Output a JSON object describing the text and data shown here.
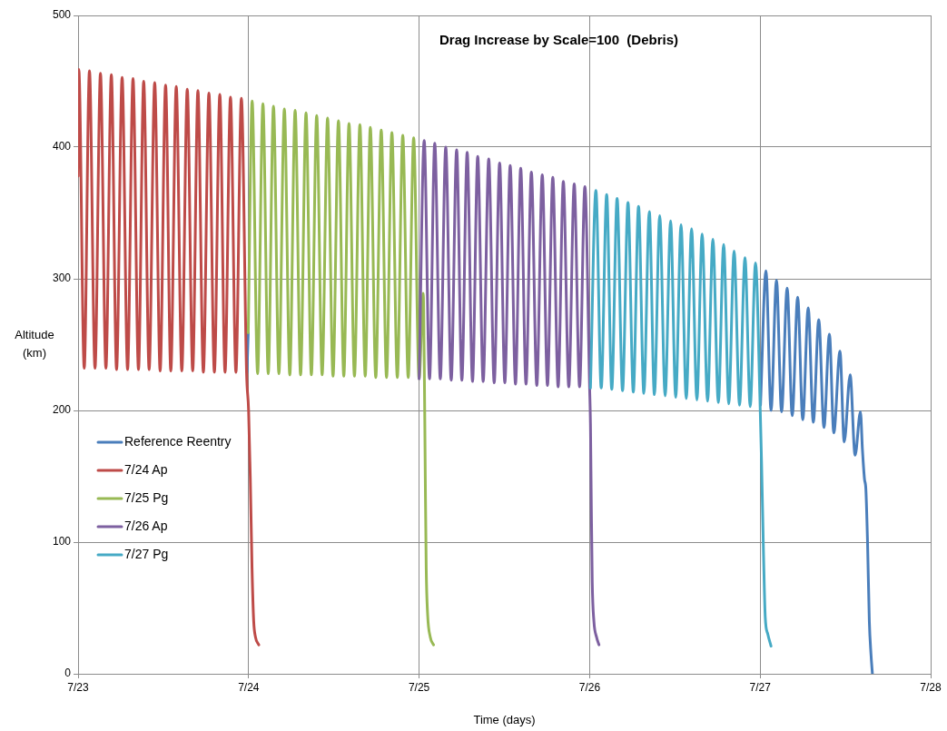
{
  "chart_data": {
    "type": "line",
    "title": "Drag Increase by Scale=100  (Debris)",
    "xlabel": "Time (days)",
    "ylabel": "Altitude (km)",
    "xlim": [
      "--07-23",
      "--07-28"
    ],
    "xticks": [
      {
        "value": "--07-23",
        "label": "7/23"
      },
      {
        "value": "--07-24",
        "label": "7/24"
      },
      {
        "value": "--07-25",
        "label": "7/25"
      },
      {
        "value": "--07-26",
        "label": "7/26"
      },
      {
        "value": "--07-27",
        "label": "7/27"
      },
      {
        "value": "--07-28",
        "label": "7/28"
      }
    ],
    "ylim": [
      0,
      500
    ],
    "yticks": [
      0,
      100,
      200,
      300,
      400,
      500
    ],
    "grid": true,
    "legend": "left",
    "marker": "none",
    "line_style": "solid",
    "series": [
      {
        "name": "Reference Reentry",
        "color": "#4a7ebb",
        "x": [
          "--07-23T23:46",
          "--07-23T23:57",
          "--07-25T12:00",
          "--07-27T00:03",
          "--07-27T00:49",
          "--07-27T01:32",
          "--07-27T02:18",
          "--07-27T03:01",
          "--07-27T03:48",
          "--07-27T04:31",
          "--07-27T05:17",
          "--07-27T06:00",
          "--07-27T06:46",
          "--07-27T07:29",
          "--07-27T08:15",
          "--07-27T08:59",
          "--07-27T09:45",
          "--07-27T10:22",
          "--07-27T11:14",
          "--07-27T11:50",
          "--07-27T12:40",
          "--07-27T13:22",
          "--07-27T14:07",
          "--07-27T14:24",
          "--07-27T14:41",
          "--07-27T14:53",
          "--07-27T15:07",
          "--07-27T15:22",
          "--07-27T15:36",
          "--07-27T15:48"
        ],
        "values": [
          229,
          259,
          null,
          204,
          306,
          200,
          299,
          199,
          293,
          196,
          286,
          193,
          278,
          191,
          269,
          187,
          258,
          183,
          245,
          176,
          227,
          166,
          199,
          170,
          148,
          140,
          100,
          40,
          15,
          0
        ]
      },
      {
        "name": "7/24 Ap",
        "color": "#be4b48",
        "x": [
          "--07-23T00:00",
          "--07-23T00:06",
          "--07-23T00:52",
          "--07-23T01:36",
          "--07-23T02:23",
          "--07-23T03:09",
          "--07-23T03:55",
          "--07-23T04:41",
          "--07-23T05:25",
          "--07-23T06:12",
          "--07-23T06:58",
          "--07-23T07:44",
          "--07-23T08:30",
          "--07-23T09:14",
          "--07-23T10:00",
          "--07-23T10:47",
          "--07-23T11:33",
          "--07-23T12:19",
          "--07-23T13:03",
          "--07-23T13:49",
          "--07-23T14:36",
          "--07-23T15:22",
          "--07-23T16:08",
          "--07-23T16:52",
          "--07-23T17:38",
          "--07-23T18:25",
          "--07-23T19:11",
          "--07-23T19:57",
          "--07-23T20:41",
          "--07-23T21:27",
          "--07-23T22:13",
          "--07-23T22:59",
          "--07-23T23:43",
          "--07-24T00:00",
          "--07-24T00:14",
          "--07-24T00:29",
          "--07-24T00:43",
          "--07-24T00:58",
          "--07-24T01:26"
        ],
        "values": [
          378,
          459,
          232,
          458,
          232,
          456,
          232,
          455,
          231,
          453,
          231,
          452,
          231,
          450,
          231,
          449,
          230,
          447,
          230,
          446,
          230,
          444,
          230,
          443,
          229,
          441,
          229,
          440,
          229,
          438,
          229,
          437,
          228,
          200,
          150,
          80,
          40,
          28,
          22
        ]
      },
      {
        "name": "7/25 Pg",
        "color": "#98b954",
        "x": [
          "--07-23T23:57",
          "--07-24T00:30",
          "--07-24T01:16",
          "--07-24T02:01",
          "--07-24T02:46",
          "--07-24T03:30",
          "--07-24T04:16",
          "--07-24T05:02",
          "--07-24T05:48",
          "--07-24T06:33",
          "--07-24T07:19",
          "--07-24T08:05",
          "--07-24T08:50",
          "--07-24T09:35",
          "--07-24T10:21",
          "--07-24T11:07",
          "--07-24T11:53",
          "--07-24T12:39",
          "--07-24T13:24",
          "--07-24T14:08",
          "--07-24T14:54",
          "--07-24T15:40",
          "--07-24T16:25",
          "--07-24T17:08",
          "--07-24T17:54",
          "--07-24T18:40",
          "--07-24T19:25",
          "--07-24T20:10",
          "--07-24T20:56",
          "--07-24T21:42",
          "--07-24T22:28",
          "--07-24T23:14",
          "--07-25T00:00",
          "--07-25T00:35",
          "--07-25T00:43",
          "--07-25T00:52",
          "--07-25T01:00",
          "--07-25T01:12",
          "--07-25T01:34",
          "--07-25T02:02"
        ],
        "values": [
          259,
          435,
          228,
          433,
          228,
          431,
          228,
          429,
          227,
          428,
          227,
          426,
          227,
          424,
          227,
          422,
          226,
          420,
          226,
          418,
          226,
          417,
          226,
          415,
          225,
          413,
          225,
          411,
          225,
          409,
          225,
          407,
          224,
          289,
          240,
          150,
          80,
          45,
          28,
          22
        ]
      },
      {
        "name": "7/26 Ap",
        "color": "#7d60a0",
        "x": [
          "--07-25T00:00",
          "--07-25T00:43",
          "--07-25T01:28",
          "--07-25T02:12",
          "--07-25T02:59",
          "--07-25T03:45",
          "--07-25T04:31",
          "--07-25T05:17",
          "--07-25T06:01",
          "--07-25T06:46",
          "--07-25T07:31",
          "--07-25T08:15",
          "--07-25T09:01",
          "--07-25T09:48",
          "--07-25T10:34",
          "--07-25T11:20",
          "--07-25T12:04",
          "--07-25T12:49",
          "--07-25T13:34",
          "--07-25T14:18",
          "--07-25T15:03",
          "--07-25T15:48",
          "--07-25T16:34",
          "--07-25T17:20",
          "--07-25T18:04",
          "--07-25T18:49",
          "--07-25T19:34",
          "--07-25T20:18",
          "--07-25T21:04",
          "--07-25T21:50",
          "--07-25T22:35",
          "--07-25T23:20",
          "--07-26T00:00",
          "--07-26T00:07",
          "--07-26T00:14",
          "--07-26T00:22",
          "--07-26T00:36",
          "--07-26T00:58",
          "--07-26T01:19"
        ],
        "values": [
          224,
          405,
          224,
          403,
          224,
          400,
          223,
          398,
          223,
          396,
          222,
          393,
          222,
          391,
          221,
          388,
          221,
          386,
          220,
          384,
          220,
          381,
          219,
          379,
          219,
          377,
          218,
          374,
          218,
          372,
          218,
          370,
          217,
          190,
          130,
          70,
          40,
          28,
          22
        ]
      },
      {
        "name": "7/27 Pg",
        "color": "#46aac5",
        "x": [
          "--07-26T00:07",
          "--07-26T00:53",
          "--07-26T01:38",
          "--07-26T02:24",
          "--07-26T03:07",
          "--07-26T03:52",
          "--07-26T04:38",
          "--07-26T05:24",
          "--07-26T06:09",
          "--07-26T06:53",
          "--07-26T07:38",
          "--07-26T08:24",
          "--07-26T09:07",
          "--07-26T09:52",
          "--07-26T10:38",
          "--07-26T11:24",
          "--07-26T12:07",
          "--07-26T12:52",
          "--07-26T13:36",
          "--07-26T14:21",
          "--07-26T15:06",
          "--07-26T15:50",
          "--07-26T16:36",
          "--07-26T17:21",
          "--07-26T18:07",
          "--07-26T18:52",
          "--07-26T19:35",
          "--07-26T20:20",
          "--07-26T21:06",
          "--07-26T21:52",
          "--07-26T22:36",
          "--07-26T23:21",
          "--07-27T00:00",
          "--07-27T00:12",
          "--07-27T00:29",
          "--07-27T00:43",
          "--07-27T01:05",
          "--07-27T01:32"
        ],
        "values": [
          217,
          367,
          217,
          364,
          216,
          361,
          215,
          358,
          214,
          355,
          213,
          351,
          212,
          348,
          211,
          344,
          210,
          341,
          209,
          338,
          208,
          334,
          207,
          330,
          206,
          326,
          205,
          321,
          204,
          316,
          203,
          312,
          203,
          160,
          89,
          43,
          30,
          21
        ]
      }
    ]
  }
}
